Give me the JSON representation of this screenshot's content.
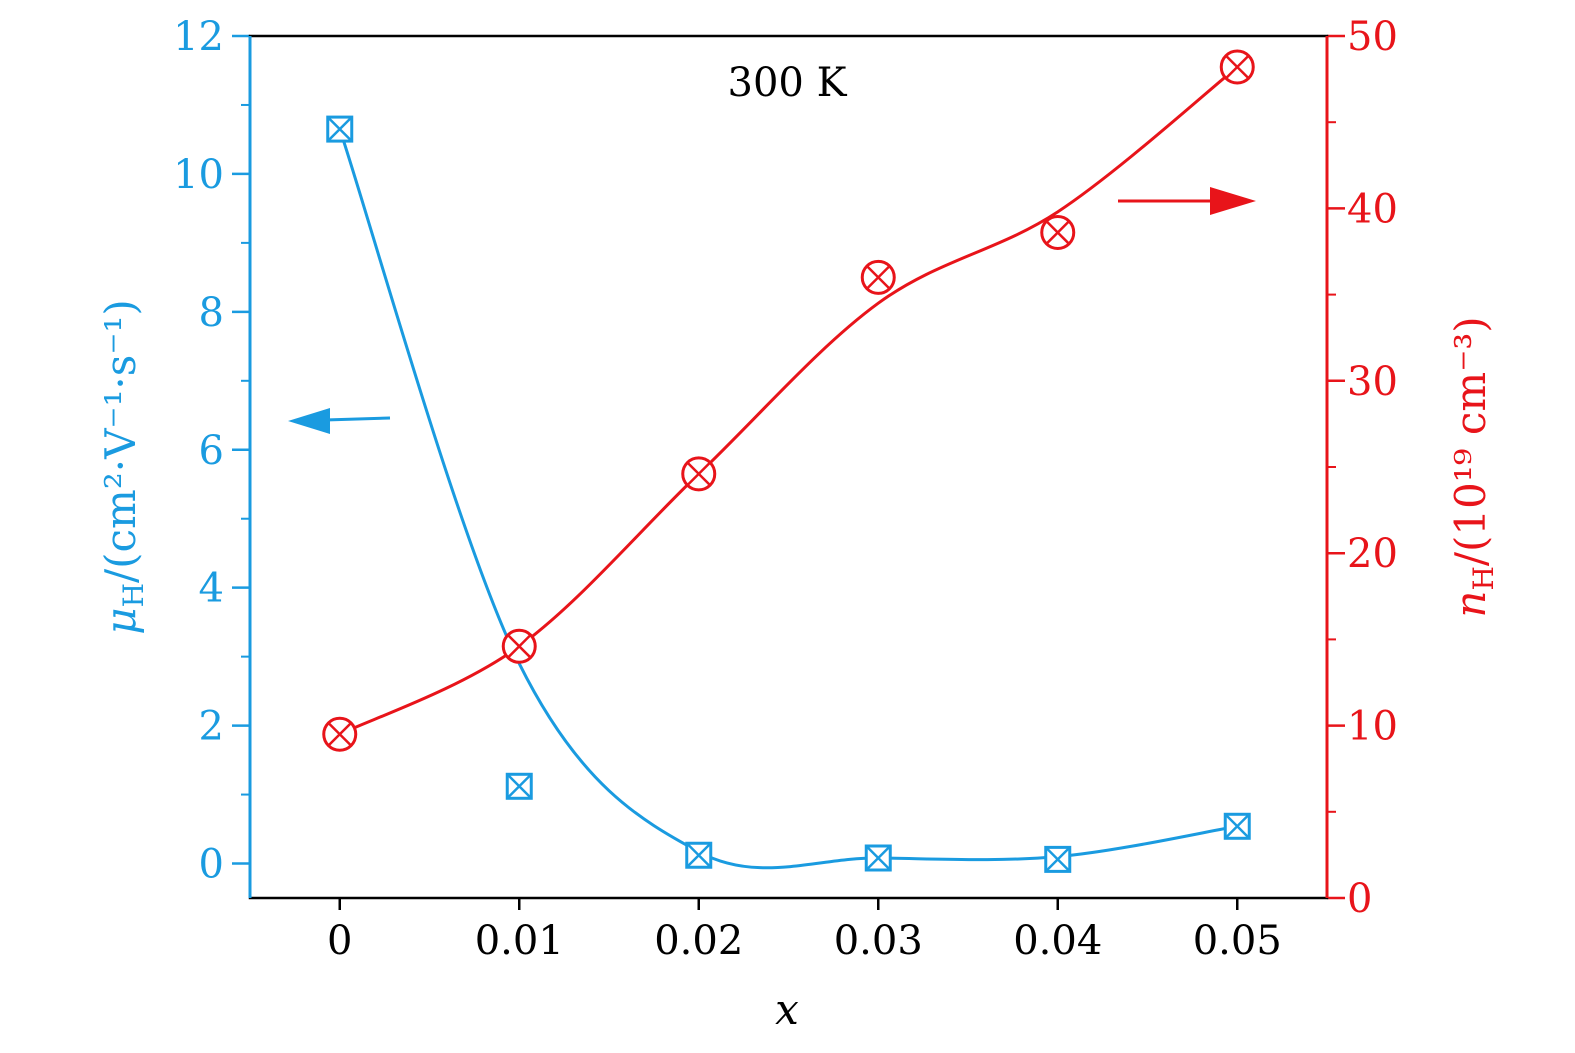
{
  "chart_data": {
    "type": "line",
    "annotation": "300 K",
    "xlabel": "x",
    "xlim": [
      -0.005,
      0.055
    ],
    "x_ticks": [
      0,
      0.01,
      0.02,
      0.03,
      0.04,
      0.05
    ],
    "x_tick_labels": [
      "0",
      "0.01",
      "0.02",
      "0.03",
      "0.04",
      "0.05"
    ],
    "y_left": {
      "label_main": "μ",
      "label_sub": "H",
      "label_rest": "/(cm²·V⁻¹·s⁻¹)",
      "lim": [
        -0.5,
        12
      ],
      "ticks": [
        0,
        2,
        4,
        6,
        8,
        10,
        12
      ],
      "tick_labels": [
        "0",
        "2",
        "4",
        "6",
        "8",
        "10",
        "12"
      ],
      "color": "#1a9be0"
    },
    "y_right": {
      "label_main": "n",
      "label_sub": "H",
      "label_rest": "/(10¹⁹ cm⁻³)",
      "lim": [
        0,
        50
      ],
      "ticks": [
        0,
        10,
        20,
        30,
        40,
        50
      ],
      "tick_labels": [
        "0",
        "10",
        "20",
        "30",
        "40",
        "50"
      ],
      "color": "#e8141a"
    },
    "series": [
      {
        "axis": "left",
        "marker": "square-x",
        "x": [
          0,
          0.01,
          0.02,
          0.03,
          0.04,
          0.05
        ],
        "y": [
          10.65,
          1.12,
          0.12,
          0.08,
          0.06,
          0.54
        ],
        "fit_y": [
          10.65,
          2.9,
          0.17,
          0.08,
          0.1,
          0.54
        ]
      },
      {
        "axis": "right",
        "marker": "circle-x",
        "x": [
          0,
          0.01,
          0.02,
          0.03,
          0.04,
          0.05
        ],
        "y": [
          9.5,
          14.6,
          24.6,
          36.0,
          38.6,
          48.2
        ],
        "fit_y": [
          9.5,
          14.6,
          24.6,
          34.5,
          39.8,
          48.2
        ]
      }
    ],
    "arrows": [
      {
        "points_to": "left",
        "color": "#1a9be0"
      },
      {
        "points_to": "right",
        "color": "#e8141a"
      }
    ]
  }
}
